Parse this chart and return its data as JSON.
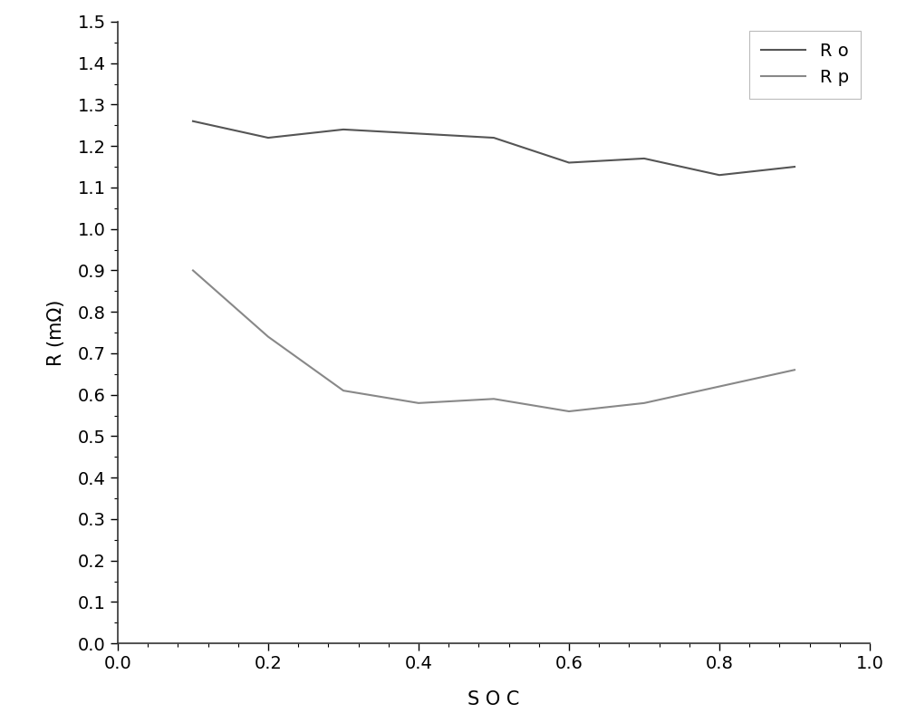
{
  "Ro_x": [
    0.1,
    0.2,
    0.3,
    0.4,
    0.5,
    0.6,
    0.7,
    0.8,
    0.9
  ],
  "Ro_y": [
    1.26,
    1.22,
    1.24,
    1.23,
    1.22,
    1.16,
    1.17,
    1.13,
    1.15
  ],
  "Rp_x": [
    0.1,
    0.2,
    0.3,
    0.4,
    0.5,
    0.6,
    0.7,
    0.8,
    0.9
  ],
  "Rp_y": [
    0.9,
    0.74,
    0.61,
    0.58,
    0.59,
    0.56,
    0.58,
    0.62,
    0.66
  ],
  "Ro_color": "#555555",
  "Rp_color": "#888888",
  "xlabel": "S O C",
  "ylabel": "R (mΩ)",
  "xlim": [
    0.0,
    1.0
  ],
  "ylim": [
    0.0,
    1.5
  ],
  "xticks": [
    0.0,
    0.2,
    0.4,
    0.6,
    0.8,
    1.0
  ],
  "yticks": [
    0.0,
    0.1,
    0.2,
    0.3,
    0.4,
    0.5,
    0.6,
    0.7,
    0.8,
    0.9,
    1.0,
    1.1,
    1.2,
    1.3,
    1.4,
    1.5
  ],
  "legend_labels": [
    "R o",
    "R p"
  ],
  "legend_loc": "upper right",
  "background_color": "#ffffff",
  "line_width": 1.5,
  "font_size": 15,
  "tick_labelsize": 14
}
